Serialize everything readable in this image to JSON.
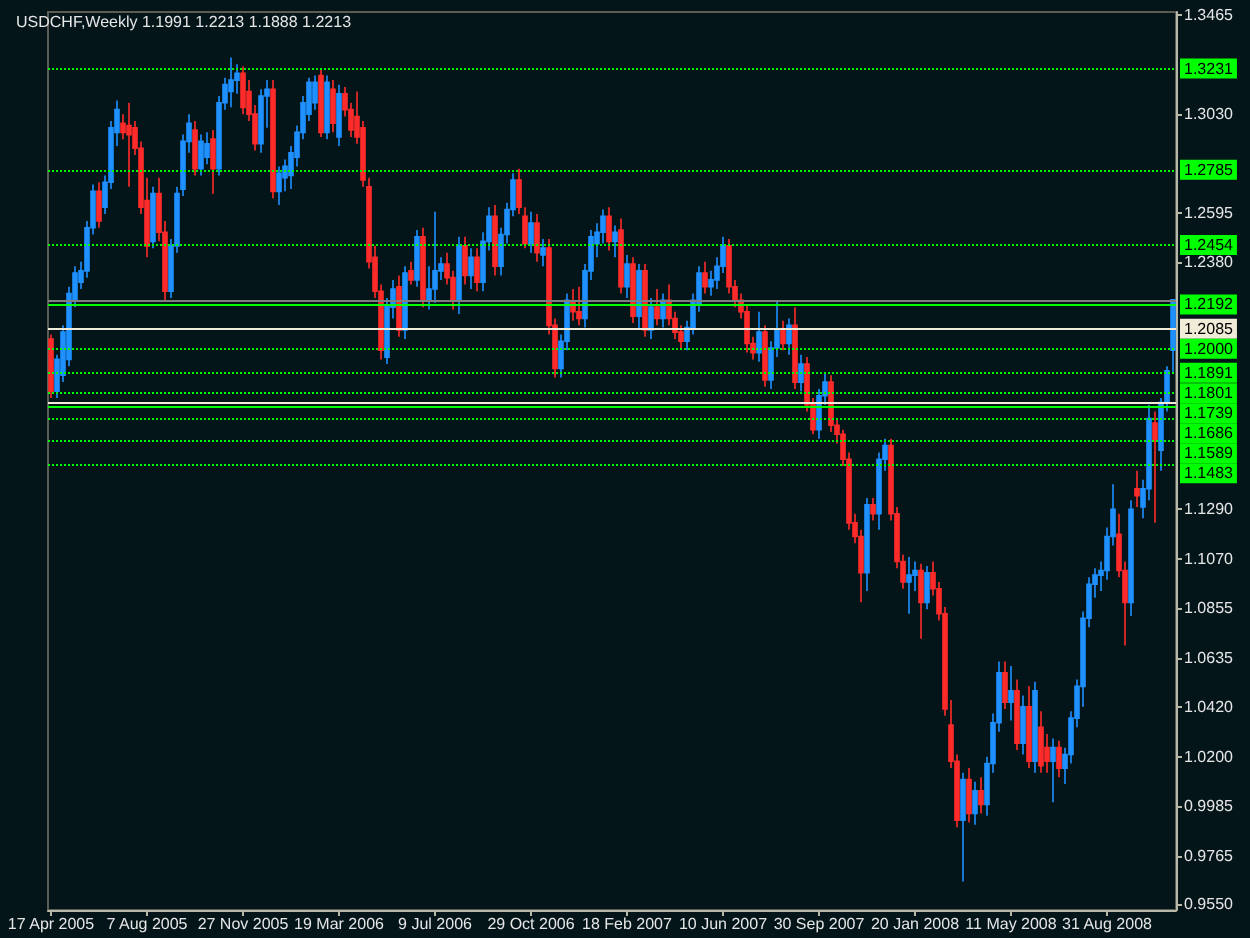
{
  "chart_data": {
    "type": "candlestick",
    "title": "USDCHF,Weekly 1.1991 1.2213 1.1888 1.2213",
    "categories": [
      "17 Apr 2005",
      null,
      null,
      null,
      null,
      null,
      null,
      null,
      null,
      null,
      null,
      null,
      null,
      null,
      null,
      null,
      "7 Aug 2005",
      null,
      null,
      null,
      null,
      null,
      null,
      null,
      null,
      null,
      null,
      null,
      null,
      null,
      null,
      null,
      "27 Nov 2005",
      null,
      null,
      null,
      null,
      null,
      null,
      null,
      null,
      null,
      null,
      null,
      null,
      null,
      null,
      null,
      "19 Mar 2006",
      null,
      null,
      null,
      null,
      null,
      null,
      null,
      null,
      null,
      null,
      null,
      null,
      null,
      null,
      null,
      "9 Jul 2006",
      null,
      null,
      null,
      null,
      null,
      null,
      null,
      null,
      null,
      null,
      null,
      null,
      null,
      null,
      null,
      "29 Oct 2006",
      null,
      null,
      null,
      null,
      null,
      null,
      null,
      null,
      null,
      null,
      null,
      null,
      null,
      null,
      null,
      "18 Feb 2007",
      null,
      null,
      null,
      null,
      null,
      null,
      null,
      null,
      null,
      null,
      null,
      null,
      null,
      null,
      null,
      "10 Jun 2007",
      null,
      null,
      null,
      null,
      null,
      null,
      null,
      null,
      null,
      null,
      null,
      null,
      null,
      null,
      null,
      "30 Sep 2007",
      null,
      null,
      null,
      null,
      null,
      null,
      null,
      null,
      null,
      null,
      null,
      null,
      null,
      null,
      null,
      "20 Jan 2008",
      null,
      null,
      null,
      null,
      null,
      null,
      null,
      null,
      null,
      null,
      null,
      null,
      null,
      null,
      null,
      "11 May 2008",
      null,
      null,
      null,
      null,
      null,
      null,
      null,
      null,
      null,
      null,
      null,
      null,
      null,
      null,
      null,
      "31 Aug 2008",
      null,
      null,
      null,
      null,
      null,
      null,
      null,
      null,
      null,
      null,
      null
    ],
    "ohlc": [
      [
        1.204,
        1.206,
        1.178,
        1.181
      ],
      [
        1.181,
        1.197,
        1.178,
        1.195
      ],
      [
        1.188,
        1.21,
        1.185,
        1.207
      ],
      [
        1.195,
        1.227,
        1.192,
        1.224
      ],
      [
        1.221,
        1.236,
        1.218,
        1.233
      ],
      [
        1.229,
        1.238,
        1.226,
        1.234
      ],
      [
        1.234,
        1.256,
        1.231,
        1.253
      ],
      [
        1.253,
        1.272,
        1.25,
        1.269
      ],
      [
        1.269,
        1.273,
        1.253,
        1.256
      ],
      [
        1.262,
        1.276,
        1.259,
        1.273
      ],
      [
        1.273,
        1.3,
        1.27,
        1.297
      ],
      [
        1.295,
        1.309,
        1.289,
        1.305
      ],
      [
        1.299,
        1.303,
        1.292,
        1.295
      ],
      [
        1.298,
        1.308,
        1.271,
        1.294
      ],
      [
        1.297,
        1.3,
        1.285,
        1.288
      ],
      [
        1.288,
        1.291,
        1.259,
        1.262
      ],
      [
        1.265,
        1.275,
        1.24,
        1.245
      ],
      [
        1.247,
        1.271,
        1.244,
        1.268
      ],
      [
        1.268,
        1.275,
        1.247,
        1.251
      ],
      [
        1.251,
        1.256,
        1.221,
        1.225
      ],
      [
        1.225,
        1.248,
        1.222,
        1.245
      ],
      [
        1.245,
        1.271,
        1.242,
        1.268
      ],
      [
        1.27,
        1.294,
        1.267,
        1.291
      ],
      [
        1.291,
        1.303,
        1.286,
        1.299
      ],
      [
        1.296,
        1.3,
        1.276,
        1.279
      ],
      [
        1.279,
        1.294,
        1.276,
        1.291
      ],
      [
        1.284,
        1.295,
        1.281,
        1.29
      ],
      [
        1.292,
        1.296,
        1.268,
        1.279
      ],
      [
        1.279,
        1.311,
        1.276,
        1.308
      ],
      [
        1.308,
        1.319,
        1.305,
        1.316
      ],
      [
        1.313,
        1.328,
        1.306,
        1.318
      ],
      [
        1.318,
        1.325,
        1.312,
        1.321
      ],
      [
        1.321,
        1.324,
        1.303,
        1.306
      ],
      [
        1.313,
        1.318,
        1.3,
        1.303
      ],
      [
        1.303,
        1.307,
        1.287,
        1.29
      ],
      [
        1.29,
        1.314,
        1.286,
        1.311
      ],
      [
        1.311,
        1.318,
        1.297,
        1.314
      ],
      [
        1.314,
        1.318,
        1.266,
        1.269
      ],
      [
        1.269,
        1.28,
        1.263,
        1.277
      ],
      [
        1.275,
        1.283,
        1.269,
        1.28
      ],
      [
        1.276,
        1.289,
        1.27,
        1.286
      ],
      [
        1.284,
        1.298,
        1.28,
        1.295
      ],
      [
        1.295,
        1.311,
        1.292,
        1.308
      ],
      [
        1.303,
        1.319,
        1.3,
        1.317
      ],
      [
        1.308,
        1.32,
        1.305,
        1.317
      ],
      [
        1.32,
        1.323,
        1.293,
        1.295
      ],
      [
        1.295,
        1.32,
        1.292,
        1.317
      ],
      [
        1.314,
        1.318,
        1.295,
        1.299
      ],
      [
        1.293,
        1.316,
        1.289,
        1.312
      ],
      [
        1.312,
        1.315,
        1.302,
        1.305
      ],
      [
        1.305,
        1.308,
        1.293,
        1.296
      ],
      [
        1.302,
        1.313,
        1.29,
        1.293
      ],
      [
        1.297,
        1.3,
        1.271,
        1.274
      ],
      [
        1.271,
        1.275,
        1.235,
        1.238
      ],
      [
        1.24,
        1.245,
        1.222,
        1.225
      ],
      [
        1.225,
        1.228,
        1.195,
        1.199
      ],
      [
        1.196,
        1.222,
        1.193,
        1.219
      ],
      [
        1.218,
        1.23,
        1.213,
        1.226
      ],
      [
        1.227,
        1.232,
        1.205,
        1.208
      ],
      [
        1.208,
        1.236,
        1.204,
        1.233
      ],
      [
        1.234,
        1.238,
        1.228,
        1.23
      ],
      [
        1.23,
        1.252,
        1.227,
        1.249
      ],
      [
        1.249,
        1.253,
        1.218,
        1.221
      ],
      [
        1.221,
        1.236,
        1.217,
        1.226
      ],
      [
        1.226,
        1.26,
        1.22,
        1.234
      ],
      [
        1.234,
        1.24,
        1.23,
        1.237
      ],
      [
        1.237,
        1.242,
        1.228,
        1.231
      ],
      [
        1.231,
        1.234,
        1.217,
        1.221
      ],
      [
        1.221,
        1.249,
        1.215,
        1.245
      ],
      [
        1.245,
        1.249,
        1.228,
        1.232
      ],
      [
        1.232,
        1.244,
        1.226,
        1.24
      ],
      [
        1.24,
        1.244,
        1.225,
        1.229
      ],
      [
        1.229,
        1.251,
        1.225,
        1.247
      ],
      [
        1.247,
        1.262,
        1.243,
        1.258
      ],
      [
        1.258,
        1.263,
        1.232,
        1.236
      ],
      [
        1.236,
        1.253,
        1.232,
        1.25
      ],
      [
        1.25,
        1.264,
        1.246,
        1.261
      ],
      [
        1.261,
        1.277,
        1.258,
        1.274
      ],
      [
        1.274,
        1.279,
        1.259,
        1.262
      ],
      [
        1.258,
        1.262,
        1.244,
        1.246
      ],
      [
        1.246,
        1.26,
        1.242,
        1.255
      ],
      [
        1.255,
        1.259,
        1.238,
        1.242
      ],
      [
        1.241,
        1.248,
        1.236,
        1.244
      ],
      [
        1.244,
        1.248,
        1.206,
        1.21
      ],
      [
        1.21,
        1.213,
        1.187,
        1.191
      ],
      [
        1.191,
        1.206,
        1.187,
        1.203
      ],
      [
        1.203,
        1.224,
        1.199,
        1.221
      ],
      [
        1.22,
        1.226,
        1.212,
        1.216
      ],
      [
        1.216,
        1.227,
        1.21,
        1.213
      ],
      [
        1.213,
        1.237,
        1.209,
        1.234
      ],
      [
        1.234,
        1.252,
        1.23,
        1.249
      ],
      [
        1.246,
        1.255,
        1.24,
        1.251
      ],
      [
        1.251,
        1.261,
        1.246,
        1.258
      ],
      [
        1.258,
        1.262,
        1.243,
        1.247
      ],
      [
        1.247,
        1.254,
        1.24,
        1.251
      ],
      [
        1.252,
        1.257,
        1.224,
        1.227
      ],
      [
        1.227,
        1.241,
        1.222,
        1.237
      ],
      [
        1.237,
        1.24,
        1.211,
        1.214
      ],
      [
        1.214,
        1.237,
        1.208,
        1.234
      ],
      [
        1.234,
        1.237,
        1.205,
        1.208
      ],
      [
        1.208,
        1.222,
        1.204,
        1.218
      ],
      [
        1.218,
        1.226,
        1.21,
        1.213
      ],
      [
        1.213,
        1.224,
        1.209,
        1.221
      ],
      [
        1.221,
        1.228,
        1.21,
        1.213
      ],
      [
        1.213,
        1.216,
        1.204,
        1.207
      ],
      [
        1.207,
        1.21,
        1.2,
        1.203
      ],
      [
        1.203,
        1.212,
        1.199,
        1.209
      ],
      [
        1.209,
        1.224,
        1.206,
        1.221
      ],
      [
        1.219,
        1.236,
        1.216,
        1.233
      ],
      [
        1.233,
        1.238,
        1.224,
        1.227
      ],
      [
        1.227,
        1.234,
        1.223,
        1.23
      ],
      [
        1.23,
        1.24,
        1.226,
        1.236
      ],
      [
        1.236,
        1.249,
        1.233,
        1.245
      ],
      [
        1.245,
        1.248,
        1.224,
        1.227
      ],
      [
        1.227,
        1.23,
        1.218,
        1.221
      ],
      [
        1.221,
        1.224,
        1.213,
        1.216
      ],
      [
        1.216,
        1.219,
        1.198,
        1.202
      ],
      [
        1.202,
        1.205,
        1.195,
        1.198
      ],
      [
        1.198,
        1.216,
        1.194,
        1.207
      ],
      [
        1.207,
        1.21,
        1.183,
        1.186
      ],
      [
        1.186,
        1.203,
        1.182,
        1.2
      ],
      [
        1.2,
        1.221,
        1.196,
        1.208
      ],
      [
        1.208,
        1.212,
        1.199,
        1.202
      ],
      [
        1.202,
        1.213,
        1.197,
        1.21
      ],
      [
        1.21,
        1.218,
        1.182,
        1.185
      ],
      [
        1.185,
        1.197,
        1.181,
        1.193
      ],
      [
        1.193,
        1.196,
        1.172,
        1.175
      ],
      [
        1.175,
        1.178,
        1.162,
        1.164
      ],
      [
        1.164,
        1.182,
        1.16,
        1.179
      ],
      [
        1.179,
        1.189,
        1.175,
        1.185
      ],
      [
        1.185,
        1.188,
        1.163,
        1.166
      ],
      [
        1.166,
        1.169,
        1.158,
        1.162
      ],
      [
        1.162,
        1.164,
        1.148,
        1.151
      ],
      [
        1.151,
        1.154,
        1.12,
        1.123
      ],
      [
        1.123,
        1.127,
        1.114,
        1.117
      ],
      [
        1.117,
        1.12,
        1.088,
        1.101
      ],
      [
        1.101,
        1.134,
        1.093,
        1.131
      ],
      [
        1.131,
        1.134,
        1.124,
        1.127
      ],
      [
        1.127,
        1.154,
        1.12,
        1.151
      ],
      [
        1.151,
        1.16,
        1.146,
        1.157
      ],
      [
        1.157,
        1.16,
        1.124,
        1.127
      ],
      [
        1.127,
        1.13,
        1.103,
        1.106
      ],
      [
        1.106,
        1.109,
        1.094,
        1.097
      ],
      [
        1.097,
        1.108,
        1.083,
        1.1
      ],
      [
        1.1,
        1.106,
        1.093,
        1.102
      ],
      [
        1.102,
        1.105,
        1.072,
        1.088
      ],
      [
        1.088,
        1.104,
        1.085,
        1.101
      ],
      [
        1.101,
        1.106,
        1.091,
        1.094
      ],
      [
        1.094,
        1.097,
        1.08,
        1.083
      ],
      [
        1.083,
        1.086,
        1.038,
        1.041
      ],
      [
        1.034,
        1.045,
        1.015,
        1.018
      ],
      [
        1.018,
        1.021,
        0.989,
        0.992
      ],
      [
        0.992,
        1.013,
        0.965,
        1.01
      ],
      [
        1.01,
        1.015,
        0.991,
        0.995
      ],
      [
        0.995,
        1.009,
        0.99,
        1.005
      ],
      [
        1.005,
        1.011,
        0.995,
        0.999
      ],
      [
        0.999,
        1.02,
        0.994,
        1.017
      ],
      [
        1.017,
        1.039,
        1.013,
        1.035
      ],
      [
        1.035,
        1.062,
        1.031,
        1.057
      ],
      [
        1.057,
        1.062,
        1.041,
        1.044
      ],
      [
        1.044,
        1.06,
        1.036,
        1.049
      ],
      [
        1.049,
        1.054,
        1.023,
        1.026
      ],
      [
        1.026,
        1.047,
        1.021,
        1.042
      ],
      [
        1.042,
        1.051,
        1.015,
        1.018
      ],
      [
        1.018,
        1.053,
        1.013,
        1.049
      ],
      [
        1.033,
        1.04,
        1.013,
        1.016
      ],
      [
        1.024,
        1.03,
        1.013,
        1.018
      ],
      [
        1.018,
        1.028,
        1.0,
        1.024
      ],
      [
        1.024,
        1.027,
        1.011,
        1.015
      ],
      [
        1.015,
        1.024,
        1.008,
        1.021
      ],
      [
        1.021,
        1.04,
        1.017,
        1.037
      ],
      [
        1.037,
        1.054,
        1.033,
        1.051
      ],
      [
        1.051,
        1.084,
        1.042,
        1.081
      ],
      [
        1.081,
        1.099,
        1.077,
        1.096
      ],
      [
        1.096,
        1.103,
        1.09,
        1.1
      ],
      [
        1.1,
        1.106,
        1.093,
        1.102
      ],
      [
        1.102,
        1.121,
        1.098,
        1.117
      ],
      [
        1.117,
        1.14,
        1.113,
        1.129
      ],
      [
        1.118,
        1.127,
        1.099,
        1.102
      ],
      [
        1.102,
        1.106,
        1.069,
        1.088
      ],
      [
        1.088,
        1.133,
        1.082,
        1.129
      ],
      [
        1.138,
        1.146,
        1.13,
        1.135
      ],
      [
        1.13,
        1.142,
        1.125,
        1.138
      ],
      [
        1.138,
        1.175,
        1.133,
        1.169
      ],
      [
        1.167,
        1.172,
        1.123,
        1.159
      ],
      [
        1.155,
        1.178,
        1.146,
        1.176
      ],
      [
        1.176,
        1.192,
        1.172,
        1.19
      ],
      [
        1.1991,
        1.2213,
        1.1888,
        1.2213
      ]
    ],
    "colors": [
      "#ff2b2b",
      "#1e90ff",
      "#1e90ff",
      "#1e90ff",
      "#1e90ff",
      "#1e90ff",
      "#1e90ff",
      "#1e90ff",
      "#ff2b2b",
      "#1e90ff",
      "#1e90ff",
      "#1e90ff",
      "#ff2b2b",
      "#ff2b2b",
      "#ff2b2b",
      "#ff2b2b",
      "#ff2b2b",
      "#1e90ff",
      "#ff2b2b",
      "#ff2b2b",
      "#1e90ff",
      "#1e90ff",
      "#1e90ff",
      "#1e90ff",
      "#ff2b2b",
      "#1e90ff",
      "#1e90ff",
      "#ff2b2b",
      "#1e90ff",
      "#1e90ff",
      "#1e90ff",
      "#1e90ff",
      "#ff2b2b",
      "#ff2b2b",
      "#ff2b2b",
      "#1e90ff",
      "#1e90ff",
      "#ff2b2b",
      "#1e90ff",
      "#1e90ff",
      "#1e90ff",
      "#1e90ff",
      "#1e90ff",
      "#1e90ff",
      "#1e90ff",
      "#ff2b2b",
      "#1e90ff",
      "#ff2b2b",
      "#1e90ff",
      "#ff2b2b",
      "#ff2b2b",
      "#ff2b2b",
      "#ff2b2b",
      "#ff2b2b",
      "#ff2b2b",
      "#ff2b2b",
      "#1e90ff",
      "#1e90ff",
      "#ff2b2b",
      "#1e90ff",
      "#ff2b2b",
      "#1e90ff",
      "#ff2b2b",
      "#1e90ff",
      "#1e90ff",
      "#1e90ff",
      "#ff2b2b",
      "#ff2b2b",
      "#1e90ff",
      "#ff2b2b",
      "#1e90ff",
      "#ff2b2b",
      "#1e90ff",
      "#1e90ff",
      "#ff2b2b",
      "#1e90ff",
      "#1e90ff",
      "#1e90ff",
      "#ff2b2b",
      "#ff2b2b",
      "#1e90ff",
      "#ff2b2b",
      "#1e90ff",
      "#ff2b2b",
      "#ff2b2b",
      "#1e90ff",
      "#1e90ff",
      "#ff2b2b",
      "#ff2b2b",
      "#1e90ff",
      "#1e90ff",
      "#1e90ff",
      "#1e90ff",
      "#ff2b2b",
      "#1e90ff",
      "#ff2b2b",
      "#1e90ff",
      "#ff2b2b",
      "#1e90ff",
      "#ff2b2b",
      "#1e90ff",
      "#ff2b2b",
      "#1e90ff",
      "#ff2b2b",
      "#ff2b2b",
      "#ff2b2b",
      "#1e90ff",
      "#1e90ff",
      "#1e90ff",
      "#ff2b2b",
      "#1e90ff",
      "#1e90ff",
      "#1e90ff",
      "#ff2b2b",
      "#ff2b2b",
      "#ff2b2b",
      "#ff2b2b",
      "#ff2b2b",
      "#1e90ff",
      "#ff2b2b",
      "#1e90ff",
      "#1e90ff",
      "#ff2b2b",
      "#1e90ff",
      "#ff2b2b",
      "#1e90ff",
      "#ff2b2b",
      "#ff2b2b",
      "#1e90ff",
      "#1e90ff",
      "#ff2b2b",
      "#ff2b2b",
      "#ff2b2b",
      "#ff2b2b",
      "#ff2b2b",
      "#ff2b2b",
      "#1e90ff",
      "#ff2b2b",
      "#1e90ff",
      "#1e90ff",
      "#ff2b2b",
      "#ff2b2b",
      "#ff2b2b",
      "#1e90ff",
      "#1e90ff",
      "#ff2b2b",
      "#1e90ff",
      "#ff2b2b",
      "#ff2b2b",
      "#ff2b2b",
      "#ff2b2b",
      "#ff2b2b",
      "#1e90ff",
      "#ff2b2b",
      "#1e90ff",
      "#ff2b2b",
      "#1e90ff",
      "#1e90ff",
      "#1e90ff",
      "#ff2b2b",
      "#1e90ff",
      "#ff2b2b",
      "#1e90ff",
      "#ff2b2b",
      "#1e90ff",
      "#ff2b2b",
      "#ff2b2b",
      "#1e90ff",
      "#ff2b2b",
      "#1e90ff",
      "#1e90ff",
      "#1e90ff",
      "#1e90ff",
      "#1e90ff",
      "#1e90ff",
      "#1e90ff",
      "#1e90ff",
      "#1e90ff",
      "#ff2b2b",
      "#ff2b2b",
      "#1e90ff",
      "#ff2b2b",
      "#1e90ff",
      "#1e90ff",
      "#ff2b2b",
      "#1e90ff",
      "#1e90ff",
      "#1e90ff"
    ],
    "ylim": [
      0.9525,
      1.348
    ],
    "yticks": [
      1.3465,
      {
        "value": 1.303,
        "label": "1.3030"
      },
      1.2595,
      {
        "value": 1.238,
        "label": "1.2380"
      },
      {
        "value": 1.129,
        "label": "1.1290"
      },
      {
        "value": 1.107,
        "label": "1.1070"
      },
      1.0855,
      1.0635,
      {
        "value": 1.042,
        "label": "1.0420"
      },
      {
        "value": 1.02,
        "label": "1.0200"
      },
      0.9985,
      0.9765,
      {
        "value": 0.955,
        "label": "0.9550"
      }
    ],
    "ref_lines": [
      {
        "axis": "y",
        "value": 1.3231,
        "label": "1.3231",
        "color": "#00ff00",
        "line_style": "dotted"
      },
      {
        "axis": "y",
        "value": 1.2785,
        "label": "1.2785",
        "color": "#00ff00",
        "line_style": "dotted"
      },
      {
        "axis": "y",
        "value": 1.2454,
        "label": "1.2454",
        "color": "#00ff00",
        "line_style": "dotted"
      },
      {
        "axis": "y",
        "value": 1.2213,
        "color": "#808080",
        "line_style": "solid"
      },
      {
        "axis": "y",
        "value": 1.2192,
        "label": "1.2192",
        "color": "#00ff00",
        "line_style": "solid"
      },
      {
        "axis": "y",
        "value": 1.2085,
        "label": "1.2085",
        "color": "#f0ecd8",
        "line_style": "solid"
      },
      {
        "axis": "y",
        "value": 1.2,
        "label": "1.2000",
        "color": "#00ff00",
        "line_style": "dotted"
      },
      {
        "axis": "y",
        "value": 1.1891,
        "label": "1.1891",
        "color": "#00ff00",
        "line_style": "dotted"
      },
      {
        "axis": "y",
        "value": 1.1801,
        "label": "1.1801",
        "color": "#00ff00",
        "line_style": "dotted"
      },
      {
        "axis": "y",
        "value": 1.1761,
        "color": "#f0ecd8",
        "line_style": "solid"
      },
      {
        "axis": "y",
        "value": 1.1739,
        "label": "1.1739",
        "color": "#00ff00",
        "line_style": "solid"
      },
      {
        "axis": "y",
        "value": 1.1686,
        "label": "1.1686",
        "color": "#00ff00",
        "line_style": "dotted"
      },
      {
        "axis": "y",
        "value": 1.1589,
        "label": "1.1589",
        "color": "#00ff00",
        "line_style": "dotted"
      },
      {
        "axis": "y",
        "value": 1.1483,
        "label": "1.1483",
        "color": "#00ff00",
        "line_style": "dotted"
      }
    ]
  }
}
